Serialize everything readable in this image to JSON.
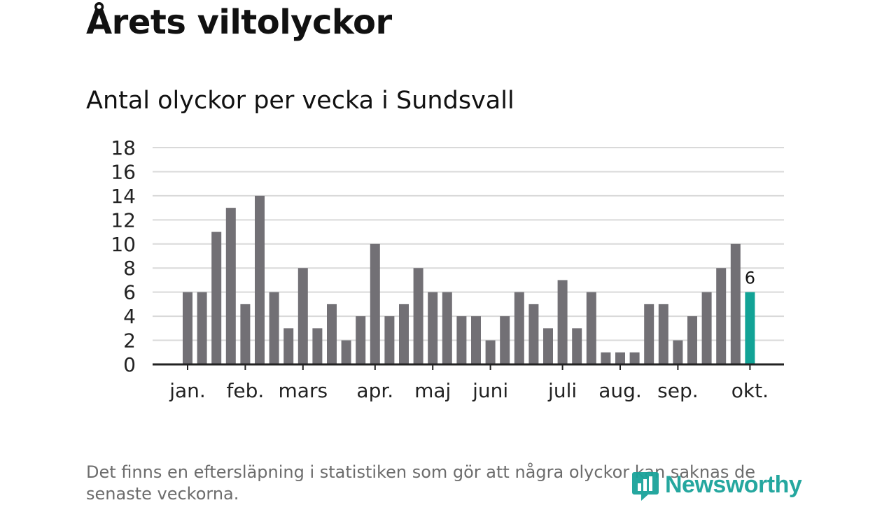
{
  "header": {
    "title": "Årets viltolyckor",
    "subtitle": "Antal olyckor per vecka i Sundsvall"
  },
  "footnote": "Det finns en eftersläpning i statistiken som gör att några olyckor kan saknas de senaste veckorna.",
  "brand": {
    "name": "Newsworthy"
  },
  "colors": {
    "bar": "#727075",
    "highlight": "#12a396",
    "grid": "#d9d9d9",
    "axis": "#222222"
  },
  "chart_data": {
    "type": "bar",
    "title": "Antal olyckor per vecka i Sundsvall",
    "xlabel": "",
    "ylabel": "",
    "ylim": [
      0,
      18
    ],
    "yticks": [
      0,
      2,
      4,
      6,
      8,
      10,
      12,
      14,
      16,
      18
    ],
    "grid": true,
    "values": [
      6,
      6,
      11,
      13,
      5,
      14,
      6,
      3,
      8,
      3,
      5,
      2,
      4,
      10,
      4,
      5,
      8,
      6,
      6,
      4,
      4,
      2,
      4,
      6,
      5,
      3,
      7,
      3,
      6,
      1,
      1,
      1,
      5,
      5,
      2,
      4,
      6,
      8,
      10,
      6
    ],
    "highlight_index": 39,
    "highlight_label": "6",
    "months": [
      {
        "label": "jan.",
        "week_index": 0
      },
      {
        "label": "feb.",
        "week_index": 4
      },
      {
        "label": "mars",
        "week_index": 8
      },
      {
        "label": "apr.",
        "week_index": 13
      },
      {
        "label": "maj",
        "week_index": 17
      },
      {
        "label": "juni",
        "week_index": 21
      },
      {
        "label": "juli",
        "week_index": 26
      },
      {
        "label": "aug.",
        "week_index": 30
      },
      {
        "label": "sep.",
        "week_index": 34
      },
      {
        "label": "okt.",
        "week_index": 39
      }
    ]
  }
}
